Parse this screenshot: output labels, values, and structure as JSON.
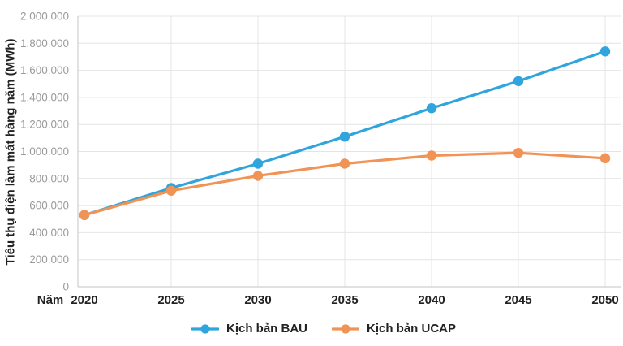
{
  "chart_data": {
    "type": "line",
    "title": "",
    "xlabel": "Năm",
    "ylabel": "Tiêu thụ điện làm mát hàng năm (MWh)",
    "categories": [
      "2020",
      "2025",
      "2030",
      "2035",
      "2040",
      "2045",
      "2050"
    ],
    "ylim": [
      0,
      2000000
    ],
    "y_tick_interval": 200000,
    "y_tick_labels": [
      "0",
      "200.000",
      "400.000",
      "600.000",
      "800.000",
      "1.000.000",
      "1.200.000",
      "1.400.000",
      "1.600.000",
      "1.800.000",
      "2.000.000"
    ],
    "grid": "horizontal and vertical gridlines on, no gridline at first category",
    "legend_position": "bottom-center",
    "series": [
      {
        "name": "Kịch bản BAU",
        "color": "#2fa4dd",
        "values": [
          530000,
          730000,
          910000,
          1110000,
          1320000,
          1520000,
          1740000
        ]
      },
      {
        "name": "Kịch bản UCAP",
        "color": "#f09355",
        "values": [
          530000,
          710000,
          820000,
          910000,
          970000,
          990000,
          950000
        ]
      }
    ]
  },
  "colors": {
    "background": "#ffffff",
    "gridline": "#e4e4e4",
    "axis_line": "#cfcfcf",
    "tick_text": "#9b9b9b",
    "label_text": "#222222"
  }
}
